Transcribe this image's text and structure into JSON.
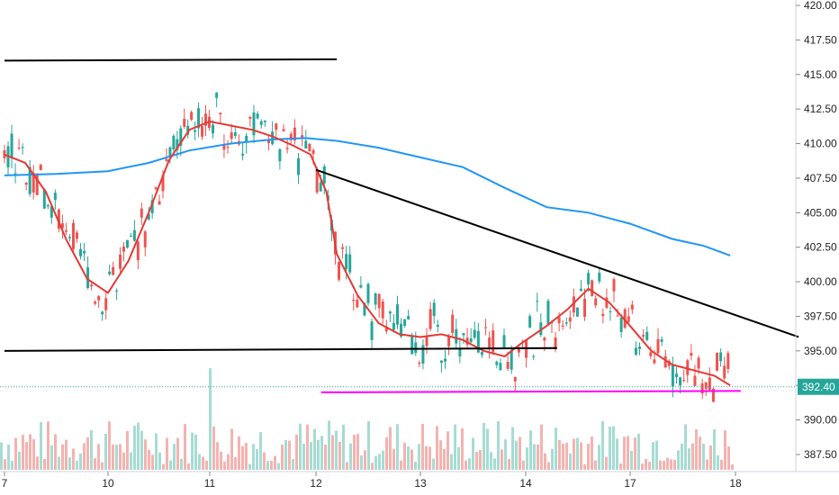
{
  "chart_data": {
    "type": "candlestick",
    "ylim": [
      386.5,
      421.0
    ],
    "y_ticks": [
      "420.00",
      "417.50",
      "415.00",
      "412.50",
      "410.00",
      "407.50",
      "405.00",
      "402.50",
      "400.00",
      "397.50",
      "395.00",
      "392.50",
      "390.00",
      "387.50"
    ],
    "y_tick_values": [
      420,
      417.5,
      415,
      412.5,
      410,
      407.5,
      405,
      402.5,
      400,
      397.5,
      395,
      392.5,
      390,
      387.5
    ],
    "x_ticks": [
      "7",
      "10",
      "11",
      "12",
      "13",
      "14",
      "17",
      "18"
    ],
    "x_tick_positions": [
      0,
      10,
      20,
      30,
      40,
      50,
      60,
      70
    ],
    "x_range": [
      0,
      75
    ],
    "last_price": "392.40",
    "last_price_value": 392.4,
    "candles": [],
    "volume": [],
    "ma_fast": [
      [
        0,
        409.2
      ],
      [
        2,
        408.6
      ],
      [
        4,
        406.5
      ],
      [
        6,
        403.0
      ],
      [
        8,
        400.2
      ],
      [
        10,
        399.2
      ],
      [
        12,
        401.5
      ],
      [
        14,
        405.0
      ],
      [
        16,
        408.8
      ],
      [
        18,
        411.0
      ],
      [
        20,
        411.6
      ],
      [
        22,
        411.3
      ],
      [
        24,
        411.0
      ],
      [
        26,
        410.5
      ],
      [
        28,
        409.8
      ],
      [
        29.5,
        409.2
      ],
      [
        31,
        406.5
      ],
      [
        32,
        402.0
      ],
      [
        34,
        399.0
      ],
      [
        36,
        397.0
      ],
      [
        38,
        396.2
      ],
      [
        40,
        396.0
      ],
      [
        42,
        396.2
      ],
      [
        44,
        395.8
      ],
      [
        46,
        395.0
      ],
      [
        48,
        394.6
      ],
      [
        49.5,
        395.5
      ],
      [
        52,
        396.8
      ],
      [
        54,
        398.0
      ],
      [
        56,
        399.5
      ],
      [
        58,
        398.5
      ],
      [
        60,
        396.8
      ],
      [
        62,
        395.0
      ],
      [
        64,
        394.0
      ],
      [
        66,
        393.6
      ],
      [
        68,
        393.2
      ],
      [
        69.5,
        392.5
      ]
    ],
    "ma_slow": [
      [
        0,
        407.7
      ],
      [
        5,
        407.8
      ],
      [
        10,
        408.0
      ],
      [
        14,
        408.6
      ],
      [
        18,
        409.5
      ],
      [
        22,
        410.0
      ],
      [
        26,
        410.3
      ],
      [
        29,
        410.4
      ],
      [
        32,
        410.2
      ],
      [
        36,
        409.7
      ],
      [
        40,
        409.0
      ],
      [
        44,
        408.3
      ],
      [
        48,
        406.8
      ],
      [
        52,
        405.4
      ],
      [
        56,
        405.0
      ],
      [
        60,
        404.2
      ],
      [
        64,
        403.1
      ],
      [
        67,
        402.6
      ],
      [
        69.5,
        401.9
      ]
    ],
    "lines": [
      {
        "color": "#000000",
        "points": [
          [
            0,
            416.0
          ],
          [
            32,
            416.1
          ]
        ]
      },
      {
        "color": "#000000",
        "points": [
          [
            0,
            395.0
          ],
          [
            53,
            395.2
          ]
        ]
      },
      {
        "color": "#000000",
        "points": [
          [
            30,
            408.1
          ],
          [
            76,
            396.0
          ]
        ]
      },
      {
        "color": "#ff00ff",
        "points": [
          [
            30.5,
            392.0
          ],
          [
            70.5,
            392.1
          ]
        ]
      }
    ]
  }
}
